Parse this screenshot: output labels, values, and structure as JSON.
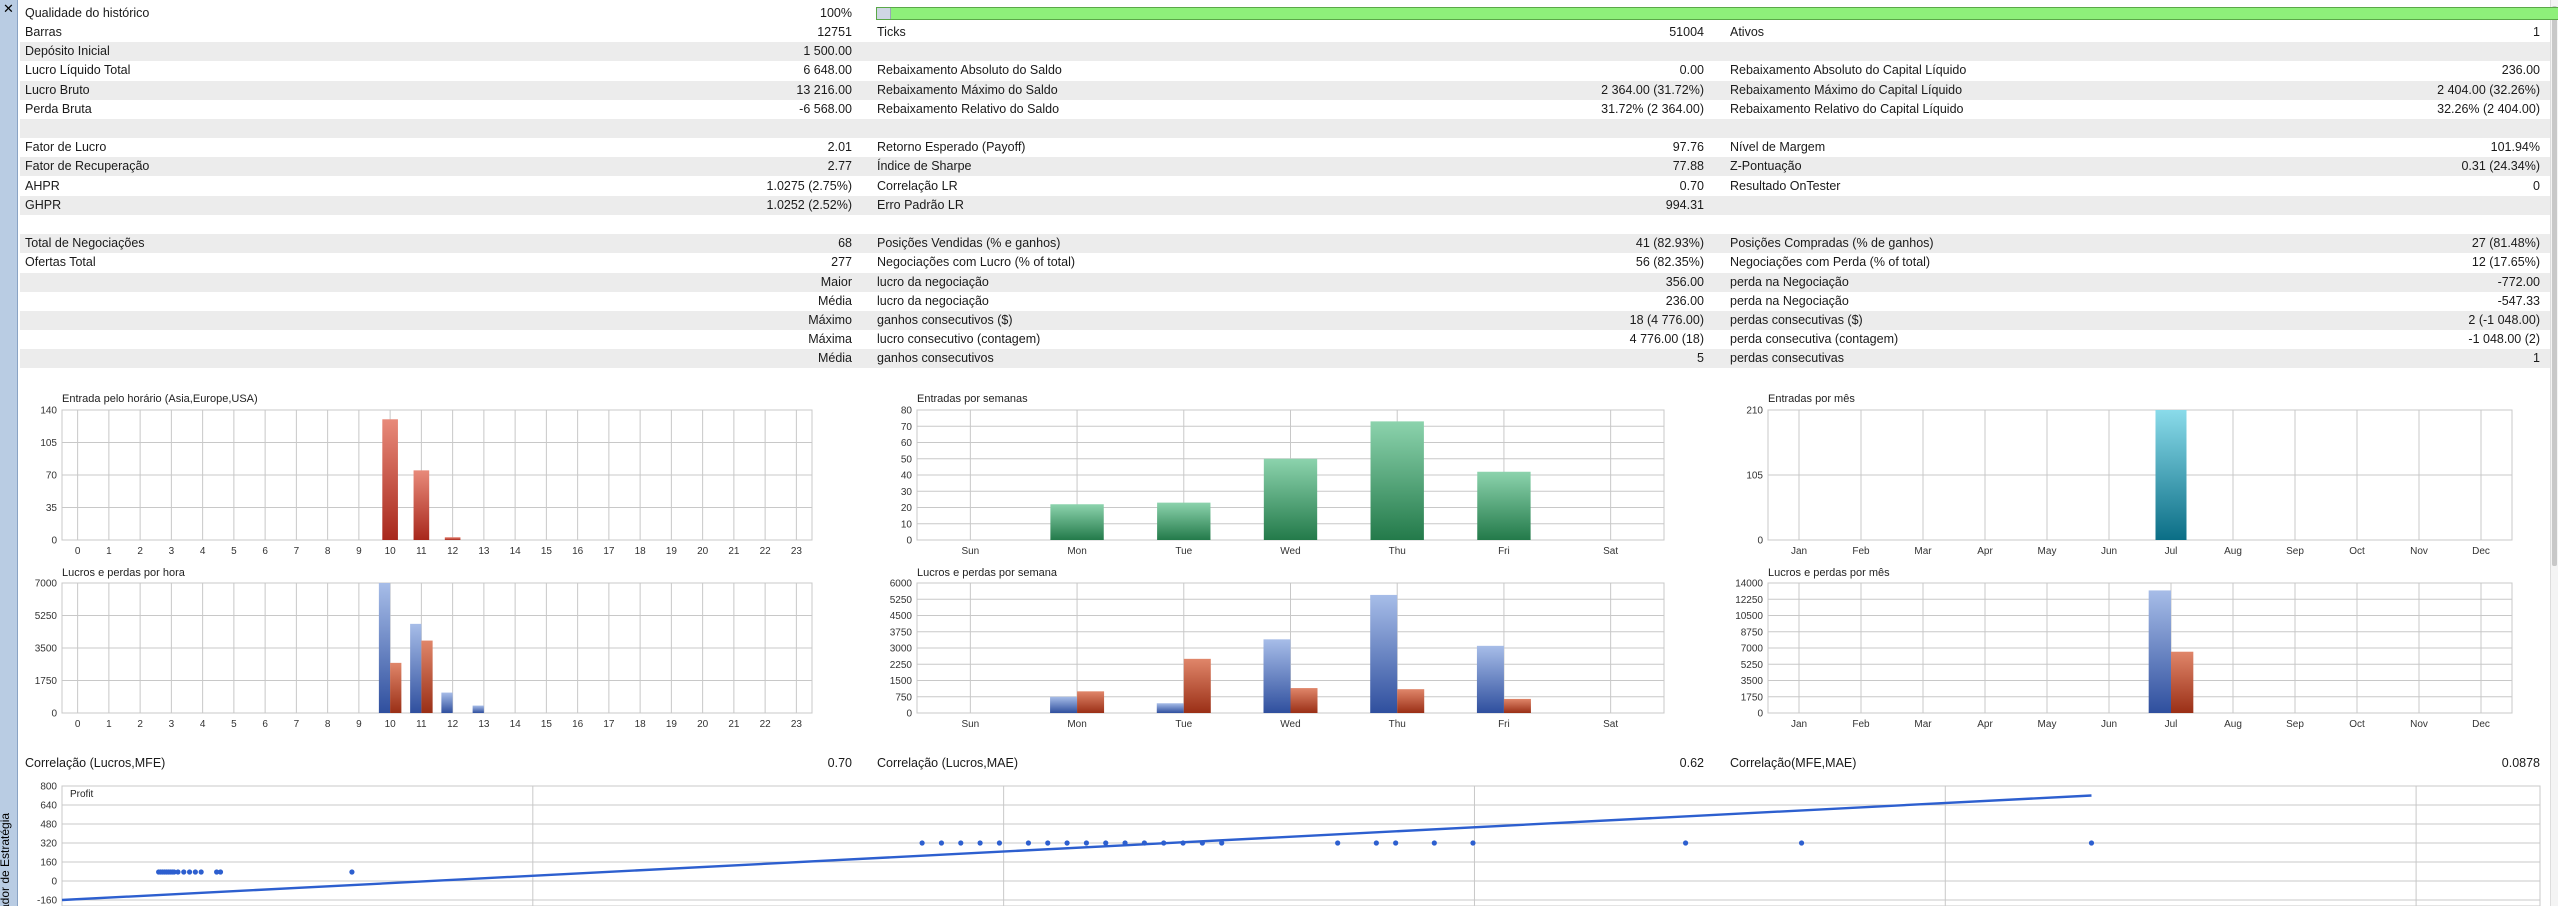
{
  "window": {
    "close_label": "✕",
    "side_label": "ador de Estratégia"
  },
  "summary": {
    "quality_label": "Qualidade do histórico",
    "quality_value": "100%",
    "quality_fraction": 1.0,
    "rows": [
      {
        "shaded": false,
        "cells": [
          [
            "Barras",
            "12751"
          ],
          [
            "Ticks",
            "51004"
          ],
          [
            "Ativos",
            "1"
          ]
        ]
      },
      {
        "shaded": true,
        "cells": [
          [
            "Depósito Inicial",
            "1 500.00"
          ],
          [
            "",
            ""
          ],
          [
            "",
            ""
          ]
        ]
      },
      {
        "shaded": false,
        "cells": [
          [
            "Lucro Líquido Total",
            "6 648.00"
          ],
          [
            "Rebaixamento Absoluto do Saldo",
            "0.00"
          ],
          [
            "Rebaixamento Absoluto do Capital Líquido",
            "236.00"
          ]
        ]
      },
      {
        "shaded": true,
        "cells": [
          [
            "Lucro Bruto",
            "13 216.00"
          ],
          [
            "Rebaixamento Máximo do Saldo",
            "2 364.00 (31.72%)"
          ],
          [
            "Rebaixamento Máximo do Capital Líquido",
            "2 404.00 (32.26%)"
          ]
        ]
      },
      {
        "shaded": false,
        "cells": [
          [
            "Perda Bruta",
            "-6 568.00"
          ],
          [
            "Rebaixamento Relativo do Saldo",
            "31.72% (2 364.00)"
          ],
          [
            "Rebaixamento Relativo do Capital Líquido",
            "32.26% (2 404.00)"
          ]
        ]
      },
      {
        "shaded": true,
        "cells": [
          [
            "",
            ""
          ],
          [
            "",
            ""
          ],
          [
            "",
            ""
          ]
        ]
      },
      {
        "shaded": false,
        "cells": [
          [
            "Fator de Lucro",
            "2.01"
          ],
          [
            "Retorno Esperado (Payoff)",
            "97.76"
          ],
          [
            "Nível de Margem",
            "101.94%"
          ]
        ]
      },
      {
        "shaded": true,
        "cells": [
          [
            "Fator de Recuperação",
            "2.77"
          ],
          [
            "Índice de Sharpe",
            "77.88"
          ],
          [
            "Z-Pontuação",
            "0.31 (24.34%)"
          ]
        ]
      },
      {
        "shaded": false,
        "cells": [
          [
            "AHPR",
            "1.0275 (2.75%)"
          ],
          [
            "Correlação LR",
            "0.70"
          ],
          [
            "Resultado OnTester",
            "0"
          ]
        ]
      },
      {
        "shaded": true,
        "cells": [
          [
            "GHPR",
            "1.0252 (2.52%)"
          ],
          [
            "Erro Padrão LR",
            "994.31"
          ],
          [
            "",
            ""
          ]
        ]
      },
      {
        "shaded": false,
        "cells": [
          [
            "",
            ""
          ],
          [
            "",
            ""
          ],
          [
            "",
            ""
          ]
        ]
      },
      {
        "shaded": true,
        "cells": [
          [
            "Total de Negociações",
            "68"
          ],
          [
            "Posições Vendidas (% e ganhos)",
            "41 (82.93%)"
          ],
          [
            "Posições Compradas (% de ganhos)",
            "27 (81.48%)"
          ]
        ]
      },
      {
        "shaded": false,
        "cells": [
          [
            "Ofertas Total",
            "277"
          ],
          [
            "Negociações com Lucro (% of total)",
            "56 (82.35%)"
          ],
          [
            "Negociações com Perda (% of total)",
            "12 (17.65%)"
          ]
        ]
      },
      {
        "shaded": true,
        "cells": [
          [
            "",
            "Maior"
          ],
          [
            "lucro da negociação",
            "356.00"
          ],
          [
            "perda na Negociação",
            "-772.00"
          ]
        ]
      },
      {
        "shaded": false,
        "cells": [
          [
            "",
            "Média"
          ],
          [
            "lucro da negociação",
            "236.00"
          ],
          [
            "perda na Negociação",
            "-547.33"
          ]
        ]
      },
      {
        "shaded": true,
        "cells": [
          [
            "",
            "Máximo"
          ],
          [
            "ganhos consecutivos ($)",
            "18 (4 776.00)"
          ],
          [
            "perdas consecutivas ($)",
            "2 (-1 048.00)"
          ]
        ]
      },
      {
        "shaded": false,
        "cells": [
          [
            "",
            "Máxima"
          ],
          [
            "lucro consecutivo (contagem)",
            "4 776.00 (18)"
          ],
          [
            "perda consecutiva (contagem)",
            "-1 048.00 (2)"
          ]
        ]
      },
      {
        "shaded": true,
        "cells": [
          [
            "",
            "Média"
          ],
          [
            "ganhos consecutivos",
            "5"
          ],
          [
            "perdas consecutivas",
            "1"
          ]
        ]
      },
      {
        "shaded": false,
        "cells": [
          [
            "",
            ""
          ],
          [
            "",
            ""
          ],
          [
            "",
            ""
          ]
        ]
      }
    ]
  },
  "correlation_row": {
    "cells": [
      [
        "Correlação (Lucros,MFE)",
        "0.70"
      ],
      [
        "Correlação (Lucros,MAE)",
        "0.62"
      ],
      [
        "Correlação(MFE,MAE)",
        "0.0878"
      ]
    ]
  },
  "colors": {
    "hour_bars": "#c0392b",
    "week_bars": "#2e8b57",
    "month_bars": "#1b9bb3",
    "profit_bars": "#3a5fb0",
    "loss_bars": "#b84a2e",
    "scatter": "#2d5fcf",
    "grid": "#c8c8c8",
    "quality_fill": "#8ef07a"
  },
  "chart_data": [
    {
      "id": "hour-entries",
      "type": "bar",
      "title": "Entrada pelo horário (Asia,Europe,USA)",
      "categories": [
        "0",
        "1",
        "2",
        "3",
        "4",
        "5",
        "6",
        "7",
        "8",
        "9",
        "10",
        "11",
        "12",
        "13",
        "14",
        "15",
        "16",
        "17",
        "18",
        "19",
        "20",
        "21",
        "22",
        "23"
      ],
      "ylim": [
        0,
        140
      ],
      "yticks": [
        "0",
        "35",
        "70",
        "105",
        "140"
      ],
      "series": [
        {
          "values": [
            0,
            0,
            0,
            0,
            0,
            0,
            0,
            0,
            0,
            0,
            130,
            75,
            3,
            0,
            0,
            0,
            0,
            0,
            0,
            0,
            0,
            0,
            0,
            0
          ]
        }
      ]
    },
    {
      "id": "week-entries",
      "type": "bar",
      "title": "Entradas por semanas",
      "categories": [
        "Sun",
        "Mon",
        "Tue",
        "Wed",
        "Thu",
        "Fri",
        "Sat"
      ],
      "ylim": [
        0,
        80
      ],
      "yticks": [
        "0",
        "10",
        "20",
        "30",
        "40",
        "50",
        "60",
        "70",
        "80"
      ],
      "series": [
        {
          "values": [
            0,
            22,
            23,
            50,
            73,
            42,
            0
          ]
        }
      ]
    },
    {
      "id": "month-entries",
      "type": "bar",
      "title": "Entradas por mês",
      "categories": [
        "Jan",
        "Feb",
        "Mar",
        "Apr",
        "May",
        "Jun",
        "Jul",
        "Aug",
        "Sep",
        "Oct",
        "Nov",
        "Dec"
      ],
      "ylim": [
        0,
        210
      ],
      "yticks": [
        "0",
        "105",
        "210"
      ],
      "series": [
        {
          "values": [
            0,
            0,
            0,
            0,
            0,
            0,
            210,
            0,
            0,
            0,
            0,
            0
          ]
        }
      ]
    },
    {
      "id": "hour-pnl",
      "type": "bar",
      "title": "Lucros e perdas por hora",
      "categories": [
        "0",
        "1",
        "2",
        "3",
        "4",
        "5",
        "6",
        "7",
        "8",
        "9",
        "10",
        "11",
        "12",
        "13",
        "14",
        "15",
        "16",
        "17",
        "18",
        "19",
        "20",
        "21",
        "22",
        "23"
      ],
      "ylim": [
        0,
        7000
      ],
      "yticks": [
        "0",
        "1750",
        "3500",
        "5250",
        "7000"
      ],
      "series": [
        {
          "values": [
            0,
            0,
            0,
            0,
            0,
            0,
            0,
            0,
            0,
            0,
            7100,
            4800,
            1100,
            400,
            0,
            0,
            0,
            0,
            0,
            0,
            0,
            0,
            0,
            0
          ]
        },
        {
          "values": [
            0,
            0,
            0,
            0,
            0,
            0,
            0,
            0,
            0,
            0,
            2700,
            3900,
            0,
            0,
            0,
            0,
            0,
            0,
            0,
            0,
            0,
            0,
            0,
            0
          ]
        }
      ]
    },
    {
      "id": "week-pnl",
      "type": "bar",
      "title": "Lucros e perdas por semana",
      "categories": [
        "Sun",
        "Mon",
        "Tue",
        "Wed",
        "Thu",
        "Fri",
        "Sat"
      ],
      "ylim": [
        0,
        6000
      ],
      "yticks": [
        "0",
        "750",
        "1500",
        "2250",
        "3000",
        "3750",
        "4500",
        "5250",
        "6000"
      ],
      "series": [
        {
          "values": [
            0,
            750,
            450,
            3400,
            5450,
            3100,
            0
          ]
        },
        {
          "values": [
            0,
            1000,
            2500,
            1150,
            1100,
            650,
            0
          ]
        }
      ]
    },
    {
      "id": "month-pnl",
      "type": "bar",
      "title": "Lucros e perdas por mês",
      "categories": [
        "Jan",
        "Feb",
        "Mar",
        "Apr",
        "May",
        "Jun",
        "Jul",
        "Aug",
        "Sep",
        "Oct",
        "Nov",
        "Dec"
      ],
      "ylim": [
        0,
        14000
      ],
      "yticks": [
        "0",
        "1750",
        "3500",
        "5250",
        "7000",
        "8750",
        "10500",
        "12250",
        "14000"
      ],
      "series": [
        {
          "values": [
            0,
            0,
            0,
            0,
            0,
            0,
            13200,
            0,
            0,
            0,
            0,
            0
          ]
        },
        {
          "values": [
            0,
            0,
            0,
            0,
            0,
            0,
            6600,
            0,
            0,
            0,
            0,
            0
          ]
        }
      ]
    },
    {
      "id": "profit-scatter",
      "type": "scatter",
      "legend": "Profit",
      "ylim": [
        -160,
        800
      ],
      "yticks": [
        "-160",
        "0",
        "160",
        "320",
        "480",
        "640",
        "800"
      ],
      "xlim": [
        0,
        1000
      ],
      "points": [
        [
          50,
          76
        ],
        [
          51,
          76
        ],
        [
          52,
          76
        ],
        [
          53,
          76
        ],
        [
          54,
          76
        ],
        [
          55,
          76
        ],
        [
          56,
          76
        ],
        [
          57,
          76
        ],
        [
          58,
          76
        ],
        [
          60,
          76
        ],
        [
          63,
          76
        ],
        [
          66,
          76
        ],
        [
          69,
          76
        ],
        [
          72,
          76
        ],
        [
          80,
          76
        ],
        [
          82,
          76
        ],
        [
          150,
          76
        ],
        [
          445,
          320
        ],
        [
          455,
          320
        ],
        [
          465,
          320
        ],
        [
          475,
          320
        ],
        [
          485,
          320
        ],
        [
          500,
          320
        ],
        [
          510,
          320
        ],
        [
          520,
          320
        ],
        [
          530,
          320
        ],
        [
          540,
          320
        ],
        [
          550,
          320
        ],
        [
          560,
          320
        ],
        [
          570,
          320
        ],
        [
          580,
          320
        ],
        [
          590,
          320
        ],
        [
          600,
          320
        ],
        [
          660,
          320
        ],
        [
          680,
          320
        ],
        [
          690,
          320
        ],
        [
          710,
          320
        ],
        [
          730,
          320
        ],
        [
          840,
          320
        ],
        [
          900,
          320
        ],
        [
          1050,
          320
        ]
      ],
      "trend": [
        [
          0,
          -160
        ],
        [
          1050,
          720
        ]
      ]
    }
  ]
}
